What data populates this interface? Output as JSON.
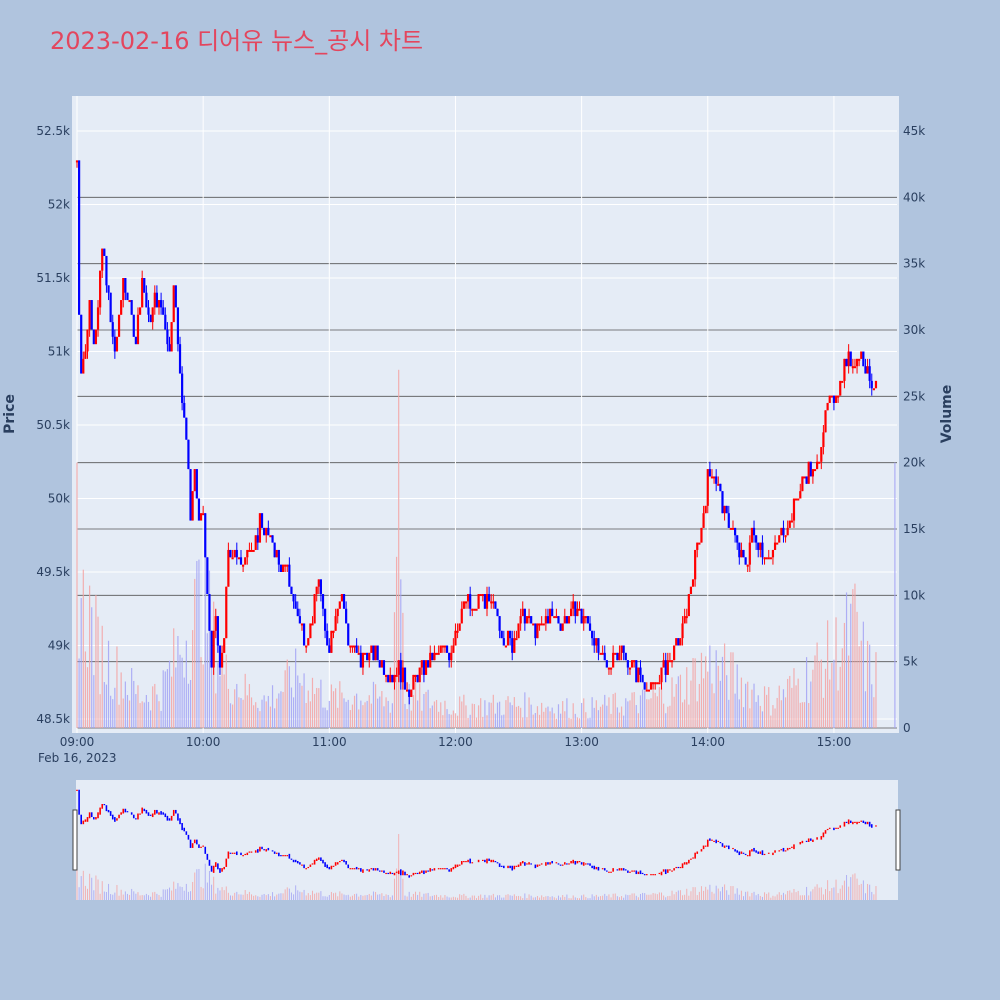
{
  "title": "2023-02-16 디어유 뉴스_공시 차트",
  "colors": {
    "background": "#b0c4de",
    "plot_bg": "#e5ecf6",
    "up": "#ff0000",
    "down": "#0000ff",
    "volume_up": "#f4a3a3",
    "volume_down": "#a3a3f4",
    "title": "#e3465e"
  },
  "chart_data": {
    "type": "candlestick",
    "title": "2023-02-16 디어유 뉴스_공시 차트",
    "ylabel": "Price",
    "y2label": "Volume",
    "xdate_label": "Feb 16, 2023",
    "ylim": [
      48450,
      52600
    ],
    "y2lim": [
      0,
      46500
    ],
    "x_range": [
      "09:00",
      "15:30"
    ],
    "y_ticks": [
      "48.5k",
      "49k",
      "49.5k",
      "50k",
      "50.5k",
      "51k",
      "51.5k",
      "52k",
      "52.5k"
    ],
    "y2_ticks": [
      "0",
      "5k",
      "10k",
      "15k",
      "20k",
      "25k",
      "30k",
      "35k",
      "40k",
      "45k"
    ],
    "x_ticks": [
      "09:00",
      "10:00",
      "11:00",
      "12:00",
      "13:00",
      "14:00",
      "15:00"
    ],
    "price_path": [
      [
        "09:00",
        52300
      ],
      [
        "09:01",
        51300
      ],
      [
        "09:02",
        50900
      ],
      [
        "09:04",
        51000
      ],
      [
        "09:06",
        51350
      ],
      [
        "09:08",
        51100
      ],
      [
        "09:10",
        51300
      ],
      [
        "09:12",
        51700
      ],
      [
        "09:14",
        51500
      ],
      [
        "09:16",
        51200
      ],
      [
        "09:18",
        51000
      ],
      [
        "09:20",
        51200
      ],
      [
        "09:22",
        51500
      ],
      [
        "09:25",
        51300
      ],
      [
        "09:28",
        51100
      ],
      [
        "09:31",
        51500
      ],
      [
        "09:34",
        51200
      ],
      [
        "09:37",
        51350
      ],
      [
        "09:40",
        51300
      ],
      [
        "09:42",
        51200
      ],
      [
        "09:44",
        51000
      ],
      [
        "09:46",
        51500
      ],
      [
        "09:48",
        51000
      ],
      [
        "09:50",
        50700
      ],
      [
        "09:52",
        50400
      ],
      [
        "09:54",
        49900
      ],
      [
        "09:56",
        50200
      ],
      [
        "09:58",
        49800
      ],
      [
        "10:00",
        49900
      ],
      [
        "10:02",
        49300
      ],
      [
        "10:04",
        48900
      ],
      [
        "10:06",
        49200
      ],
      [
        "10:08",
        48800
      ],
      [
        "10:10",
        49100
      ],
      [
        "10:12",
        49600
      ],
      [
        "10:15",
        49700
      ],
      [
        "10:18",
        49500
      ],
      [
        "10:21",
        49700
      ],
      [
        "10:24",
        49600
      ],
      [
        "10:27",
        49850
      ],
      [
        "10:30",
        49750
      ],
      [
        "10:33",
        49700
      ],
      [
        "10:36",
        49550
      ],
      [
        "10:40",
        49500
      ],
      [
        "10:43",
        49300
      ],
      [
        "10:46",
        49150
      ],
      [
        "10:49",
        49050
      ],
      [
        "10:52",
        49200
      ],
      [
        "10:55",
        49450
      ],
      [
        "10:58",
        49100
      ],
      [
        "11:00",
        49000
      ],
      [
        "11:03",
        49250
      ],
      [
        "11:06",
        49350
      ],
      [
        "11:09",
        49050
      ],
      [
        "11:12",
        48950
      ],
      [
        "11:15",
        48900
      ],
      [
        "11:18",
        48950
      ],
      [
        "11:21",
        48950
      ],
      [
        "11:24",
        48900
      ],
      [
        "11:27",
        48850
      ],
      [
        "11:30",
        48800
      ],
      [
        "11:33",
        48850
      ],
      [
        "11:36",
        48750
      ],
      [
        "11:39",
        48700
      ],
      [
        "11:42",
        48800
      ],
      [
        "11:45",
        48850
      ],
      [
        "11:48",
        48900
      ],
      [
        "11:51",
        48950
      ],
      [
        "11:54",
        49000
      ],
      [
        "11:57",
        48950
      ],
      [
        "12:00",
        49100
      ],
      [
        "12:03",
        49250
      ],
      [
        "12:06",
        49300
      ],
      [
        "12:09",
        49200
      ],
      [
        "12:12",
        49350
      ],
      [
        "12:15",
        49300
      ],
      [
        "12:18",
        49250
      ],
      [
        "12:21",
        49150
      ],
      [
        "12:24",
        49050
      ],
      [
        "12:27",
        49000
      ],
      [
        "12:30",
        49150
      ],
      [
        "12:33",
        49200
      ],
      [
        "12:36",
        49150
      ],
      [
        "12:39",
        49100
      ],
      [
        "12:42",
        49150
      ],
      [
        "12:45",
        49200
      ],
      [
        "12:48",
        49200
      ],
      [
        "12:51",
        49150
      ],
      [
        "12:54",
        49200
      ],
      [
        "12:57",
        49250
      ],
      [
        "13:00",
        49200
      ],
      [
        "13:03",
        49150
      ],
      [
        "13:06",
        49050
      ],
      [
        "13:09",
        48900
      ],
      [
        "13:12",
        48850
      ],
      [
        "13:15",
        48950
      ],
      [
        "13:18",
        49000
      ],
      [
        "13:21",
        48900
      ],
      [
        "13:24",
        48850
      ],
      [
        "13:27",
        48800
      ],
      [
        "13:30",
        48750
      ],
      [
        "13:33",
        48700
      ],
      [
        "13:36",
        48750
      ],
      [
        "13:39",
        48850
      ],
      [
        "13:42",
        48900
      ],
      [
        "13:45",
        49000
      ],
      [
        "13:48",
        49100
      ],
      [
        "13:51",
        49300
      ],
      [
        "13:54",
        49600
      ],
      [
        "13:57",
        49800
      ],
      [
        "14:00",
        50150
      ],
      [
        "14:03",
        50200
      ],
      [
        "14:06",
        50000
      ],
      [
        "14:09",
        49850
      ],
      [
        "14:12",
        49800
      ],
      [
        "14:15",
        49600
      ],
      [
        "14:18",
        49550
      ],
      [
        "14:21",
        49750
      ],
      [
        "14:24",
        49700
      ],
      [
        "14:27",
        49650
      ],
      [
        "14:30",
        49600
      ],
      [
        "14:33",
        49700
      ],
      [
        "14:36",
        49800
      ],
      [
        "14:39",
        49850
      ],
      [
        "14:42",
        50000
      ],
      [
        "14:45",
        50100
      ],
      [
        "14:48",
        50200
      ],
      [
        "14:51",
        50150
      ],
      [
        "14:54",
        50400
      ],
      [
        "14:57",
        50600
      ],
      [
        "15:00",
        50700
      ],
      [
        "15:03",
        50800
      ],
      [
        "15:06",
        50950
      ],
      [
        "15:09",
        50900
      ],
      [
        "15:12",
        51000
      ],
      [
        "15:15",
        50900
      ],
      [
        "15:18",
        50800
      ],
      [
        "15:20",
        50750
      ]
    ],
    "volume_profile": [
      [
        "09:00",
        20000
      ],
      [
        "09:01",
        14000
      ],
      [
        "09:03",
        11000
      ],
      [
        "09:05",
        11000
      ],
      [
        "09:10",
        7500
      ],
      [
        "09:20",
        5000
      ],
      [
        "09:30",
        3000
      ],
      [
        "09:40",
        3500
      ],
      [
        "09:50",
        8000
      ],
      [
        "09:55",
        10000
      ],
      [
        "10:00",
        13000
      ],
      [
        "10:05",
        8000
      ],
      [
        "10:10",
        5000
      ],
      [
        "10:20",
        3500
      ],
      [
        "10:30",
        2500
      ],
      [
        "10:45",
        5000
      ],
      [
        "11:00",
        2800
      ],
      [
        "11:15",
        3000
      ],
      [
        "11:30",
        2500
      ],
      [
        "11:33",
        27000
      ],
      [
        "11:36",
        3000
      ],
      [
        "12:00",
        2000
      ],
      [
        "12:30",
        2200
      ],
      [
        "13:00",
        1800
      ],
      [
        "13:30",
        2500
      ],
      [
        "13:45",
        3500
      ],
      [
        "14:00",
        6000
      ],
      [
        "14:10",
        5000
      ],
      [
        "14:30",
        2500
      ],
      [
        "14:45",
        4500
      ],
      [
        "15:00",
        7000
      ],
      [
        "15:10",
        9500
      ],
      [
        "15:15",
        6000
      ],
      [
        "15:20",
        5000
      ],
      [
        "15:29",
        20000
      ]
    ]
  }
}
